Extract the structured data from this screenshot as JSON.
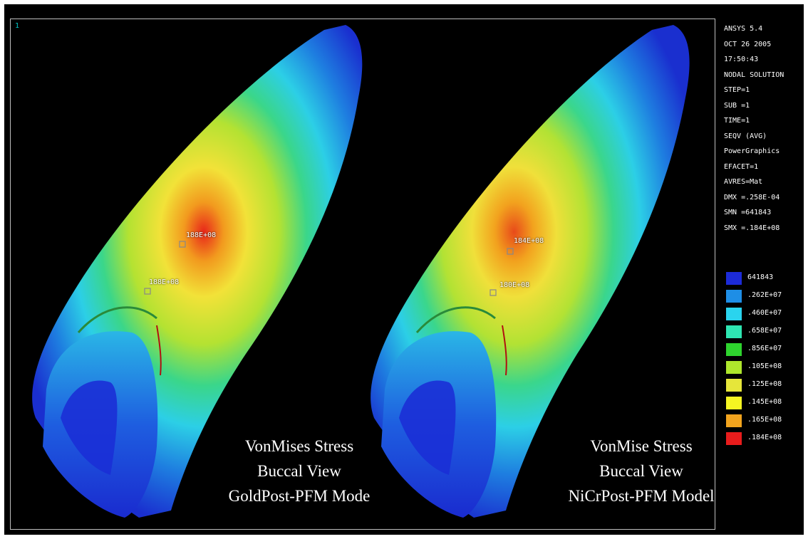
{
  "viewport": {
    "window_number": "1"
  },
  "info_panel": {
    "lines": [
      "ANSYS 5.4",
      "OCT 26 2005",
      "17:50:43",
      "NODAL SOLUTION",
      "STEP=1",
      "SUB =1",
      "TIME=1",
      "SEQV     (AVG)",
      "PowerGraphics",
      "EFACET=1",
      "AVRES=Mat",
      "DMX =.258E-04",
      "SMN =641843",
      "SMX =.184E+08"
    ]
  },
  "legend": {
    "entries": [
      {
        "label": "641843",
        "color": "#1c2bd8"
      },
      {
        "label": ".262E+07",
        "color": "#1e8ee6"
      },
      {
        "label": ".460E+07",
        "color": "#2ad4ee"
      },
      {
        "label": ".658E+07",
        "color": "#2ee6b2"
      },
      {
        "label": ".856E+07",
        "color": "#2ed42e"
      },
      {
        "label": ".105E+08",
        "color": "#aee62c"
      },
      {
        "label": ".125E+08",
        "color": "#e6e63a"
      },
      {
        "label": ".145E+08",
        "color": "#f5f522"
      },
      {
        "label": ".165E+08",
        "color": "#f2a41e"
      },
      {
        "label": ".184E+08",
        "color": "#e81c1c"
      }
    ]
  },
  "left_model": {
    "caption": [
      "VonMises Stress",
      "Buccal View",
      "GoldPost-PFM Mode"
    ],
    "probe_upper": "188E+08",
    "probe_lower": "188E+08"
  },
  "right_model": {
    "caption": [
      "VonMise Stress",
      "Buccal View",
      "NiCrPost-PFM Model"
    ],
    "probe_upper": "184E+08",
    "probe_lower": "180E+08"
  }
}
